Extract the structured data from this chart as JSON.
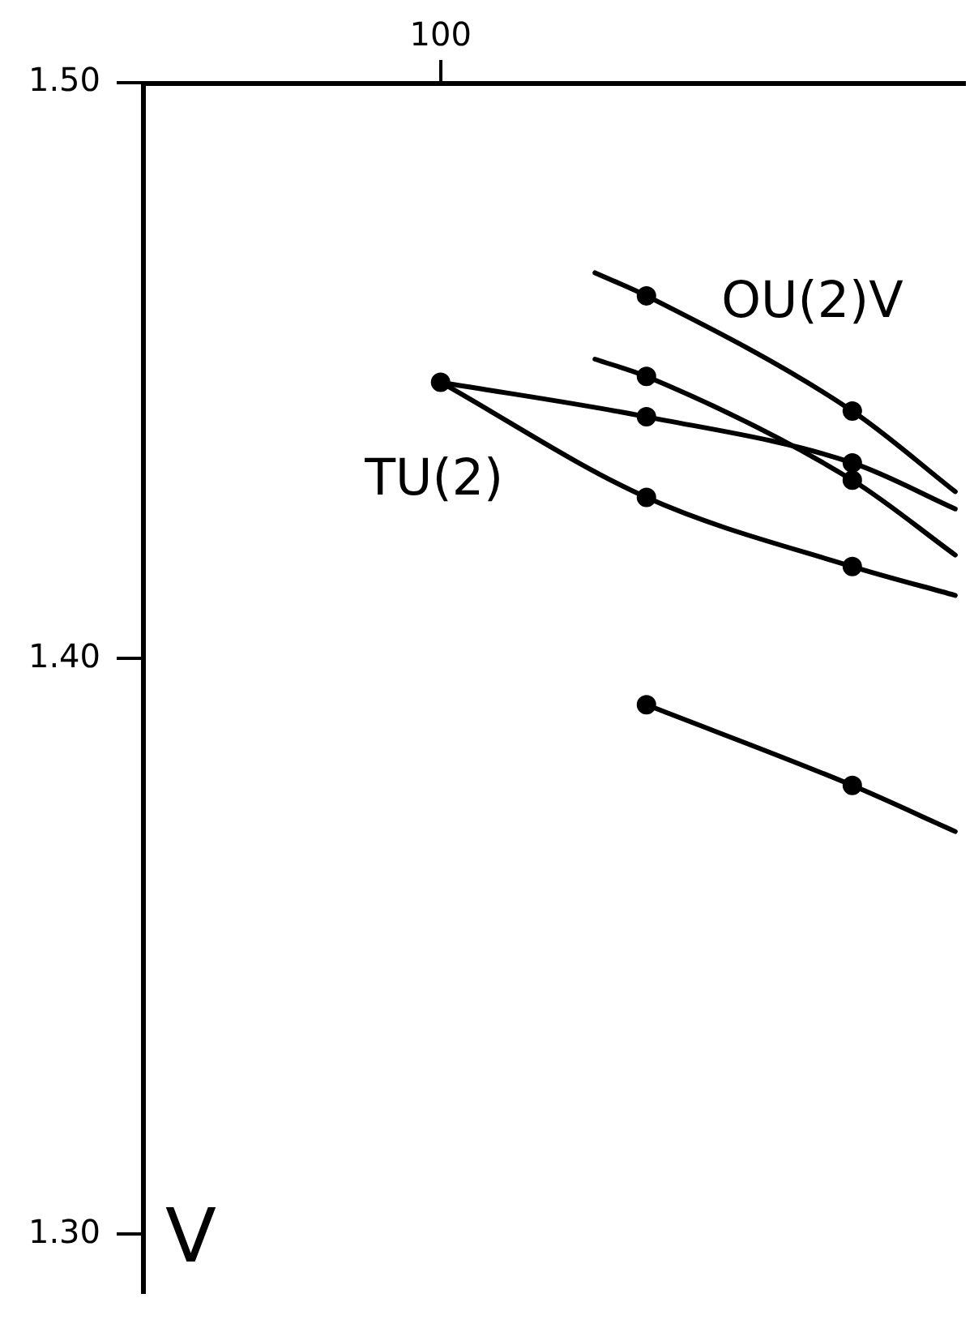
{
  "chart_data": {
    "type": "line",
    "marker": "none",
    "categories": [
      null,
      null,
      null,
      null,
      null,
      "100",
      null,
      null,
      null,
      null,
      null,
      null,
      null,
      null,
      null,
      null
    ],
    "ylim": [
      1.29,
      1.5
    ],
    "yticks": [
      {
        "value": 1.3,
        "label": "1.30"
      },
      {
        "value": 1.4,
        "label": "1.40"
      },
      {
        "value": 1.5,
        "label": "1.50"
      }
    ],
    "annotations": [
      "V"
    ],
    "series": [
      {
        "name": "OU(2)V",
        "color": "#000000",
        "values": [
          null,
          null,
          null,
          null,
          null,
          null,
          null,
          null,
          1.467,
          1.463,
          null,
          null,
          null,
          1.443,
          null,
          1.429
        ]
      },
      {
        "color": "#000000",
        "values": [
          null,
          null,
          null,
          null,
          null,
          null,
          null,
          null,
          1.452,
          1.449,
          null,
          null,
          null,
          1.431,
          null,
          1.418
        ]
      },
      {
        "color": "#000000",
        "values": [
          null,
          null,
          null,
          null,
          null,
          1.448,
          null,
          null,
          null,
          1.442,
          null,
          null,
          null,
          1.434,
          null,
          1.426
        ]
      },
      {
        "name": "TU(2)",
        "color": "#000000",
        "values": [
          null,
          null,
          null,
          null,
          null,
          1.448,
          null,
          null,
          null,
          1.428,
          null,
          null,
          null,
          1.416,
          null,
          1.411
        ]
      },
      {
        "color": "#000000",
        "values": [
          null,
          null,
          null,
          null,
          null,
          null,
          null,
          null,
          null,
          1.392,
          null,
          null,
          null,
          1.378,
          null,
          1.37
        ]
      },
      {
        "type": "scatter",
        "color": "#000000",
        "marker": "circle",
        "values": [
          null,
          null,
          null,
          null,
          null,
          null,
          null,
          null,
          null,
          1.463,
          null,
          null,
          null,
          1.443,
          null,
          null
        ]
      },
      {
        "type": "scatter",
        "color": "#000000",
        "marker": "circle",
        "values": [
          null,
          null,
          null,
          null,
          null,
          null,
          null,
          null,
          null,
          1.449,
          null,
          null,
          null,
          1.431,
          null,
          null
        ]
      },
      {
        "type": "scatter",
        "color": "#000000",
        "marker": "circle",
        "values": [
          null,
          null,
          null,
          null,
          null,
          null,
          null,
          null,
          null,
          1.442,
          null,
          null,
          null,
          1.434,
          null,
          null
        ]
      },
      {
        "type": "scatter",
        "color": "#000000",
        "marker": "circle",
        "values": [
          null,
          null,
          null,
          null,
          null,
          1.448,
          null,
          null,
          null,
          1.428,
          null,
          null,
          null,
          1.416,
          null,
          null
        ]
      },
      {
        "type": "scatter",
        "color": "#000000",
        "marker": "circle",
        "values": [
          null,
          null,
          null,
          null,
          null,
          null,
          null,
          null,
          null,
          1.392,
          null,
          null,
          null,
          1.378,
          null,
          null
        ]
      }
    ]
  }
}
